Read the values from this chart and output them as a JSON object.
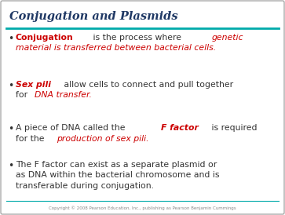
{
  "title": "Conjugation and Plasmids",
  "title_color": "#1F3864",
  "title_fontstyle": "italic",
  "title_fontsize": 10.5,
  "line_color": "#00AAAA",
  "background_color": "#FFFFFF",
  "border_color": "#AAAAAA",
  "footer_text": "Copyright © 2008 Pearson Education, Inc., publishing as Pearson Benjamin Cummings",
  "footer_color": "#888888",
  "footer_fontsize": 4.0,
  "bullet_color": "#333333",
  "bullet_fontsize": 7.8,
  "bullets": [
    {
      "parts": [
        {
          "text": "Conjugation",
          "color": "#CC0000",
          "bold": true,
          "italic": false
        },
        {
          "text": " is the process where ",
          "color": "#333333",
          "bold": false,
          "italic": false
        },
        {
          "text": "genetic\nmaterial is transferred between bacterial cells.",
          "color": "#CC0000",
          "bold": false,
          "italic": true
        }
      ]
    },
    {
      "parts": [
        {
          "text": "Sex pili",
          "color": "#CC0000",
          "bold": true,
          "italic": true
        },
        {
          "text": " allow cells to connect and pull together\nfor ",
          "color": "#333333",
          "bold": false,
          "italic": false
        },
        {
          "text": "DNA transfer.",
          "color": "#CC0000",
          "bold": false,
          "italic": true
        }
      ]
    },
    {
      "parts": [
        {
          "text": "A piece of DNA called the ",
          "color": "#333333",
          "bold": false,
          "italic": false
        },
        {
          "text": "F factor",
          "color": "#CC0000",
          "bold": true,
          "italic": true
        },
        {
          "text": " is required\nfor the ",
          "color": "#333333",
          "bold": false,
          "italic": false
        },
        {
          "text": "production of sex pili.",
          "color": "#CC0000",
          "bold": false,
          "italic": true
        }
      ]
    },
    {
      "parts": [
        {
          "text": "The F factor can exist as a separate plasmid or\nas DNA within the bacterial chromosome and is\ntransferable during conjugation.",
          "color": "#333333",
          "bold": false,
          "italic": false
        }
      ]
    }
  ]
}
